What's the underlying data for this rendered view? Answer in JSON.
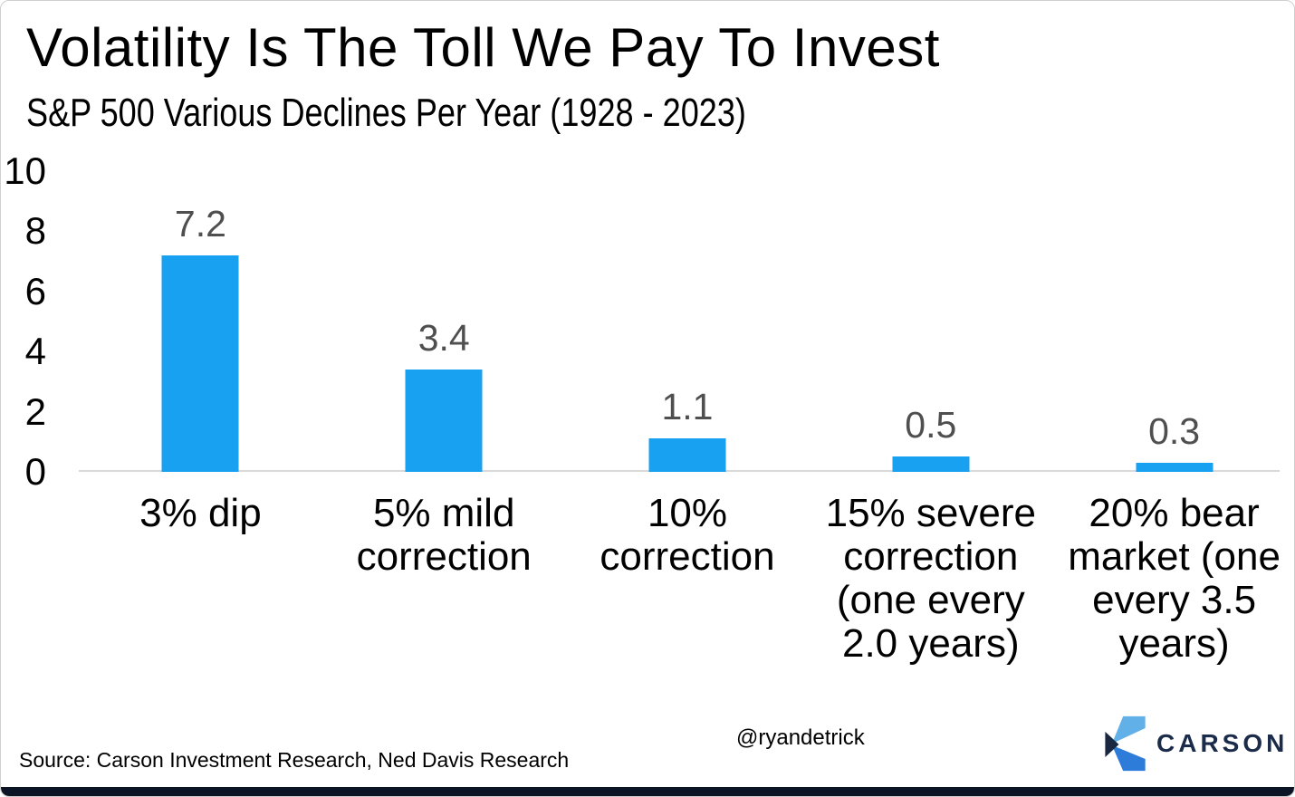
{
  "header": {
    "title": "Volatility Is The Toll We Pay To Invest",
    "subtitle": "S&P 500 Various Declines Per Year (1928 - 2023)"
  },
  "chart_data": {
    "type": "bar",
    "title": "Volatility Is The Toll We Pay To Invest",
    "subtitle": "S&P 500 Various Declines Per Year (1928 - 2023)",
    "categories": [
      "3% dip",
      "5% mild\ncorrection",
      "10%\ncorrection",
      "15% severe\ncorrection\n(one every\n2.0 years)",
      "20% bear\nmarket (one\nevery 3.5\nyears)"
    ],
    "values": [
      7.2,
      3.4,
      1.1,
      0.5,
      0.3
    ],
    "value_labels": [
      "7.2",
      "3.4",
      "1.1",
      "0.5",
      "0.3"
    ],
    "xlabel": "",
    "ylabel": "",
    "ylim": [
      0,
      10
    ],
    "yticks": [
      10,
      8,
      6,
      4,
      2,
      0
    ],
    "grid": false,
    "legend": false,
    "bar_color": "#18a1f1",
    "value_label_color": "#4f4f4f",
    "axis_line_color": "#d9d9d9"
  },
  "footer": {
    "source": "Source: Carson Investment Research, Ned Davis Research",
    "handle": "@ryandetrick",
    "logo": {
      "wordmark": "CARSON",
      "navy": "#1b2b4a",
      "light_blue": "#62b0e8",
      "mid_blue": "#2e7cd9",
      "dark_navy": "#1a2740"
    }
  },
  "accent_bar_color": "#0b1424"
}
